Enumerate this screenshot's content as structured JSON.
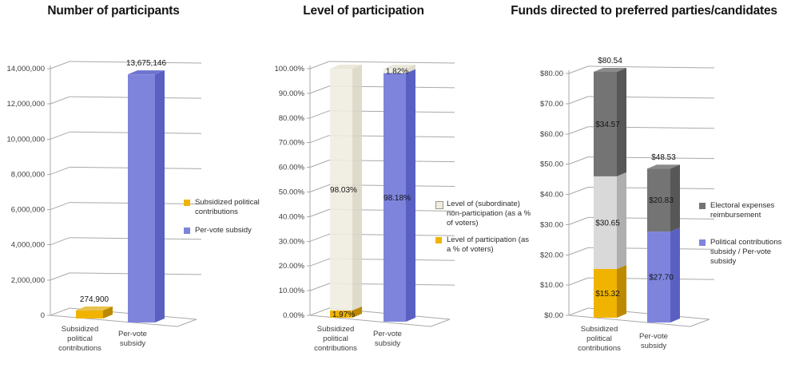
{
  "page": {
    "background": "#ffffff"
  },
  "palette": {
    "gold": {
      "front": "#F0B400",
      "side": "#BC8A00",
      "top": "#E8C34A"
    },
    "blue": {
      "front": "#7E84DC",
      "side": "#5A60C2",
      "top": "#6E74D0"
    },
    "beige": {
      "front": "#EFEDE0",
      "side": "#D9D6C4",
      "top": "#E7E5D6"
    },
    "lightgray": {
      "front": "#D9D9D9",
      "side": "#AFAFAF",
      "top": "#CFCFCF"
    },
    "darkgray": {
      "front": "#747474",
      "side": "#575757",
      "top": "#8B8B8B"
    }
  },
  "chart_data": [
    {
      "type": "bar",
      "projection": "3d-column",
      "title": "Number of participants",
      "xlabel": "",
      "ylabel": "",
      "ylim": [
        0,
        14000000
      ],
      "grid": true,
      "legend_position": "right",
      "y_ticks": [
        "14,000,000",
        "12,000,000",
        "10,000,000",
        "8,000,000",
        "6,000,000",
        "4,000,000",
        "2,000,000",
        "0"
      ],
      "categories": [
        "Subsidized political contributions",
        "Per-vote subsidy"
      ],
      "category_lines": [
        [
          "Subsidized",
          "political",
          "contributions"
        ],
        [
          "Per-vote",
          "subsidy"
        ]
      ],
      "bars": [
        {
          "segments": [
            {
              "value": 274900,
              "label": "274,900",
              "color": "gold",
              "label_pos": "above"
            }
          ]
        },
        {
          "segments": [
            {
              "value": 13675146,
              "label": "13,675,146",
              "color": "blue",
              "label_pos": "above"
            }
          ]
        }
      ],
      "legend": [
        {
          "label": "Subsidized political contributions",
          "color": "gold"
        },
        {
          "label": "Per-vote subsidy",
          "color": "blue"
        }
      ]
    },
    {
      "type": "bar",
      "projection": "3d-stacked-column",
      "title": "Level of participation",
      "xlabel": "",
      "ylabel": "",
      "ylim": [
        0,
        100
      ],
      "grid": true,
      "legend_position": "right",
      "y_ticks": [
        "100.00%",
        "90.00%",
        "80.00%",
        "70.00%",
        "60.00%",
        "50.00%",
        "40.00%",
        "30.00%",
        "20.00%",
        "10.00%",
        "0.00%"
      ],
      "categories": [
        "Subsidized political contributions",
        "Per-vote subsidy"
      ],
      "category_lines": [
        [
          "Subsidized",
          "political",
          "contributions"
        ],
        [
          "Per-vote",
          "subsidy"
        ]
      ],
      "bars": [
        {
          "segments": [
            {
              "value": 1.97,
              "label": "1.97%",
              "color": "gold",
              "label_pos": "inside"
            },
            {
              "value": 98.03,
              "label": "98.03%",
              "color": "beige",
              "label_pos": "inside",
              "label_color": "#8f8e85"
            }
          ]
        },
        {
          "segments": [
            {
              "value": 98.18,
              "label": "98.18%",
              "color": "blue",
              "label_pos": "inside"
            },
            {
              "value": 1.82,
              "label": "1.82%",
              "color": "beige",
              "label_pos": "inside",
              "label_color": "#4a4a44"
            }
          ]
        }
      ],
      "legend": [
        {
          "label": "Level of (subordinate) non-participation (as a % of voters)",
          "color": "beige"
        },
        {
          "label": "Level of participation (as a % of voters)",
          "color": "gold"
        }
      ]
    },
    {
      "type": "bar",
      "projection": "3d-stacked-column",
      "title": "Funds directed to preferred parties/candidates",
      "xlabel": "",
      "ylabel": "",
      "ylim": [
        0,
        80
      ],
      "grid": true,
      "legend_position": "right",
      "y_ticks": [
        "$80.00",
        "$70.00",
        "$60.00",
        "$50.00",
        "$40.00",
        "$30.00",
        "$20.00",
        "$10.00",
        "$0.00"
      ],
      "categories": [
        "Subsidized political contributions",
        "Per-vote subsidy"
      ],
      "category_lines": [
        [
          "Subsidized",
          "political",
          "contributions"
        ],
        [
          "Per-vote",
          "subsidy"
        ]
      ],
      "bars": [
        {
          "total_label": "$80.54",
          "segments": [
            {
              "value": 15.32,
              "label": "$15.32",
              "color": "gold",
              "label_pos": "inside"
            },
            {
              "value": 30.65,
              "label": "$30.65",
              "color": "lightgray",
              "label_pos": "inside"
            },
            {
              "value": 34.57,
              "label": "$34.57",
              "color": "darkgray",
              "label_pos": "inside",
              "label_color": "#1d1d1d"
            }
          ]
        },
        {
          "total_label": "$48.53",
          "segments": [
            {
              "value": 27.7,
              "label": "$27.70",
              "color": "blue",
              "label_pos": "inside"
            },
            {
              "value": 20.83,
              "label": "$20.83",
              "color": "darkgray",
              "label_pos": "inside",
              "label_color": "#1d1d1d"
            }
          ]
        }
      ],
      "legend": [
        {
          "label": "Electoral expenses reimbursement",
          "color": "darkgray"
        },
        {
          "label": "Political contributions subsidy / Per-vote subsidy",
          "color": "blue"
        }
      ]
    }
  ]
}
